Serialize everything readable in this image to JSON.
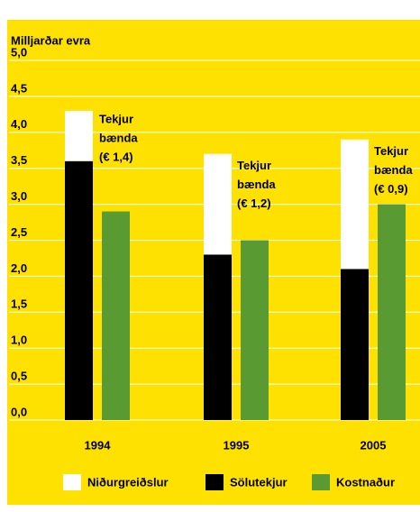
{
  "chart_data": {
    "type": "bar",
    "y_label": "Milljarðar evra",
    "categories": [
      "1994",
      "1995",
      "2005"
    ],
    "series": [
      {
        "name": "Niðurgreiðslur",
        "color": "#ffffff",
        "values": [
          0.7,
          1.4,
          1.8
        ]
      },
      {
        "name": "Sölutekjur",
        "color": "#000000",
        "values": [
          3.6,
          2.3,
          2.1
        ]
      },
      {
        "name": "Kostnaður",
        "color": "#5a9a32",
        "values": [
          2.9,
          2.5,
          3.0
        ]
      }
    ],
    "annotations": [
      [
        "Tekjur",
        "bænda",
        "(€ 1,4)"
      ],
      [
        "Tekjur",
        "bænda",
        "(€ 1,2)"
      ],
      [
        "Tekjur",
        "bænda",
        "(€ 0,9)"
      ]
    ],
    "ylim": [
      0,
      5
    ],
    "yticks": [
      {
        "value": 0,
        "label": "0,0"
      },
      {
        "value": 0.5,
        "label": "0,5"
      },
      {
        "value": 1,
        "label": "1,0"
      },
      {
        "value": 1.5,
        "label": "1,5"
      },
      {
        "value": 2,
        "label": "2,0"
      },
      {
        "value": 2.5,
        "label": "2,5"
      },
      {
        "value": 3,
        "label": "3,0"
      },
      {
        "value": 3.5,
        "label": "3,5"
      },
      {
        "value": 4,
        "label": "4,0"
      },
      {
        "value": 4.5,
        "label": "4,5"
      },
      {
        "value": 5,
        "label": "5,0"
      }
    ],
    "grid": true,
    "background": "#ffe100"
  }
}
